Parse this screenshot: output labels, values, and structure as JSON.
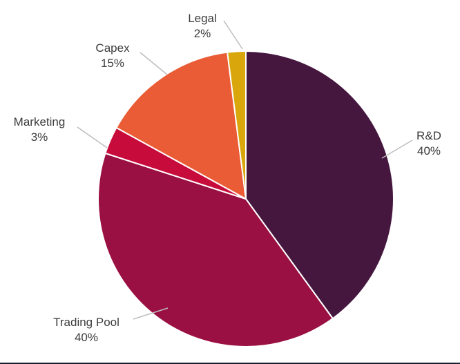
{
  "chart_data": {
    "type": "pie",
    "title": "",
    "direction": "clockwise",
    "start_angle_deg": 0,
    "legend": "none",
    "labels_outside": true,
    "slices": [
      {
        "id": "rd",
        "label": "R&D",
        "value": 40,
        "pct_label": "40%",
        "color": "#45173f"
      },
      {
        "id": "trading-pool",
        "label": "Trading Pool",
        "value": 40,
        "pct_label": "40%",
        "color": "#9b1042"
      },
      {
        "id": "marketing",
        "label": "Marketing",
        "value": 3,
        "pct_label": "3%",
        "color": "#c70c3c"
      },
      {
        "id": "capex",
        "label": "Capex",
        "value": 15,
        "pct_label": "15%",
        "color": "#ea5c35"
      },
      {
        "id": "legal",
        "label": "Legal",
        "value": 2,
        "pct_label": "2%",
        "color": "#d9a70c"
      }
    ]
  },
  "styles": {
    "background": "#ffffff",
    "label_color": "#3c3c3c",
    "leader_line_color": "#bdbdbd",
    "slice_stroke": "#ffffff",
    "divider_color": "#1c2130"
  }
}
